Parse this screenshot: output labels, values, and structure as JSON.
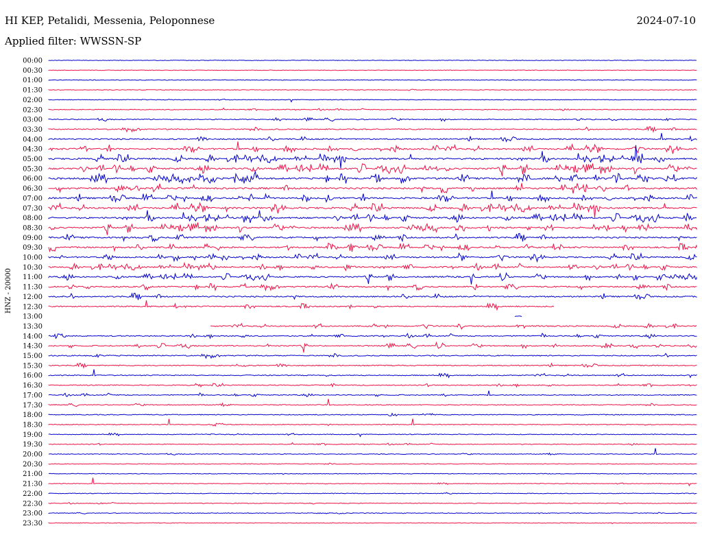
{
  "header": {
    "title": "HI KEP, Petalidi, Messenia, Peloponnese",
    "subtitle": "Applied filter: WWSSN-SP",
    "date": "2024-07-10"
  },
  "chart_data": {
    "type": "line",
    "ylabel": "HNZ - 20000",
    "rows": [
      "00:00",
      "00:30",
      "01:00",
      "01:30",
      "02:00",
      "02:30",
      "03:00",
      "03:30",
      "04:00",
      "04:30",
      "05:00",
      "05:30",
      "06:00",
      "06:30",
      "07:00",
      "07:30",
      "08:00",
      "08:30",
      "09:00",
      "09:30",
      "10:00",
      "10:30",
      "11:00",
      "11:30",
      "12:00",
      "12:30",
      "13:00",
      "13:30",
      "14:00",
      "14:30",
      "15:00",
      "15:30",
      "16:00",
      "16:30",
      "17:00",
      "17:30",
      "18:00",
      "18:30",
      "19:00",
      "19:30",
      "20:00",
      "20:30",
      "21:00",
      "21:30",
      "22:00",
      "22:30",
      "23:00",
      "23:30"
    ],
    "series_colors": [
      "#0000cc",
      "#ee1144"
    ],
    "activity": [
      0.03,
      0.03,
      0.04,
      0.06,
      0.08,
      0.12,
      0.22,
      0.3,
      0.38,
      0.55,
      0.62,
      0.66,
      0.65,
      0.62,
      0.58,
      0.64,
      0.6,
      0.58,
      0.5,
      0.52,
      0.5,
      0.48,
      0.46,
      0.44,
      0.42,
      0.38,
      0.05,
      0.34,
      0.3,
      0.32,
      0.3,
      0.26,
      0.24,
      0.22,
      0.22,
      0.2,
      0.2,
      0.16,
      0.14,
      0.12,
      0.11,
      0.1,
      0.09,
      0.08,
      0.1,
      0.09,
      0.08,
      0.07
    ],
    "coverage": [
      [
        0,
        1
      ],
      [
        0,
        1
      ],
      [
        0,
        1
      ],
      [
        0,
        1
      ],
      [
        0,
        1
      ],
      [
        0,
        1
      ],
      [
        0,
        1
      ],
      [
        0,
        1
      ],
      [
        0,
        1
      ],
      [
        0,
        1
      ],
      [
        0,
        1
      ],
      [
        0,
        1
      ],
      [
        0,
        1
      ],
      [
        0,
        1
      ],
      [
        0,
        1
      ],
      [
        0,
        1
      ],
      [
        0,
        1
      ],
      [
        0,
        1
      ],
      [
        0,
        1
      ],
      [
        0,
        1
      ],
      [
        0,
        1
      ],
      [
        0,
        1
      ],
      [
        0,
        1
      ],
      [
        0,
        1
      ],
      [
        0,
        1
      ],
      [
        0,
        0.78
      ],
      [
        0.72,
        0.73
      ],
      [
        0.25,
        1
      ],
      [
        0,
        1
      ],
      [
        0,
        1
      ],
      [
        0,
        1
      ],
      [
        0,
        1
      ],
      [
        0,
        1
      ],
      [
        0,
        1
      ],
      [
        0,
        1
      ],
      [
        0,
        1
      ],
      [
        0,
        1
      ],
      [
        0,
        1
      ],
      [
        0,
        1
      ],
      [
        0,
        1
      ],
      [
        0,
        1
      ],
      [
        0,
        1
      ],
      [
        0,
        1
      ],
      [
        0,
        1
      ],
      [
        0,
        1
      ],
      [
        0,
        1
      ],
      [
        0,
        1
      ],
      [
        0,
        1
      ]
    ]
  }
}
